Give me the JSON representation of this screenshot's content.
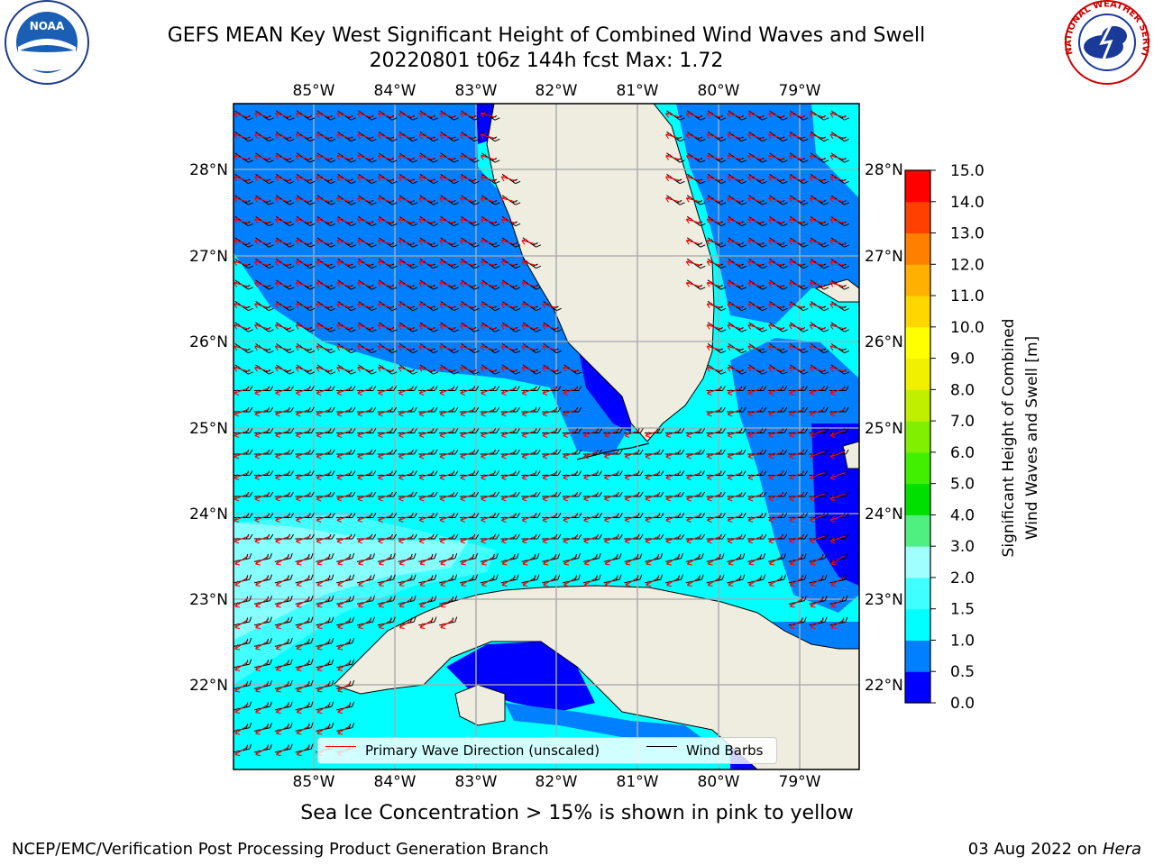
{
  "header": {
    "title_line1": "GEFS MEAN Key West Significant Height of Combined Wind Waves and Swell",
    "title_line2": "20220801 t06z 144h fcst   Max: 1.72"
  },
  "logos": {
    "noaa": {
      "center_text": "NOAA",
      "ring_text": "NATIONAL OCEANIC AND ATMOSPHERIC ADMINISTRATION · U.S. DEPARTMENT OF COMMERCE"
    },
    "nws": {
      "ring_text": "NATIONAL WEATHER SERVICE"
    }
  },
  "map": {
    "lon_labels": [
      "85°W",
      "84°W",
      "83°W",
      "82°W",
      "81°W",
      "80°W",
      "79°W"
    ],
    "lat_labels": [
      "28°N",
      "27°N",
      "26°N",
      "25°N",
      "24°N",
      "23°N",
      "22°N"
    ],
    "lon_range": [
      -86.0,
      -78.3
    ],
    "lat_range": [
      21.05,
      28.75
    ],
    "land_color": "#eeede0",
    "barb_color": "#000000",
    "wave_dir_color": "#ff0000"
  },
  "colorbar": {
    "label_line1": "Significant Height of Combined",
    "label_line2": "Wind Waves and Swell [m]",
    "tick_labels": [
      "0.0",
      "0.5",
      "1.0",
      "1.5",
      "2.0",
      "3.0",
      "4.0",
      "5.0",
      "6.0",
      "7.0",
      "8.0",
      "9.0",
      "10.0",
      "11.0",
      "12.0",
      "13.0",
      "14.0",
      "15.0"
    ],
    "colors": [
      "#0000ff",
      "#0080ff",
      "#00ffff",
      "#40ffff",
      "#a0ffff",
      "#50f080",
      "#00e000",
      "#40f000",
      "#80f000",
      "#c0f000",
      "#f0f000",
      "#ffff00",
      "#ffd700",
      "#ffb000",
      "#ff8000",
      "#ff4000",
      "#ff0000"
    ]
  },
  "legend": {
    "wave_label": "Primary Wave Direction (unscaled)",
    "barb_label": "Wind Barbs"
  },
  "notes": {
    "sea_ice": "Sea Ice Concentration > 15% is shown in pink to yellow"
  },
  "footer": {
    "left": "NCEP/EMC/Verification Post Processing Product Generation Branch",
    "right_date": "03 Aug 2022 on",
    "right_host": "Hera"
  }
}
